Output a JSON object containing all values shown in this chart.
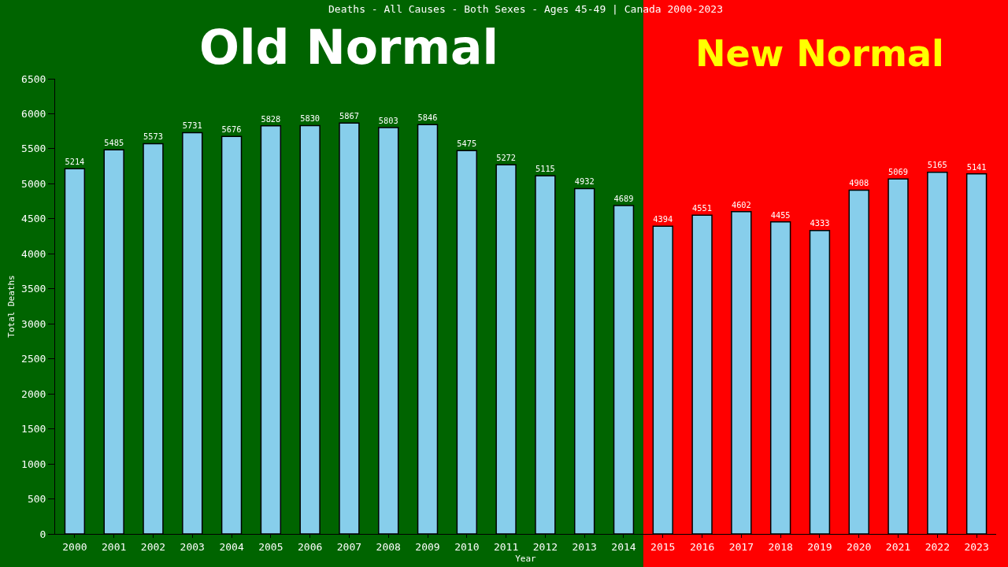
{
  "chart_data": {
    "type": "bar",
    "title": "Deaths - All Causes - Both Sexes - Ages 45-49 | Canada 2000-2023",
    "xlabel": "Year",
    "ylabel": "Total Deaths",
    "categories": [
      "2000",
      "2001",
      "2002",
      "2003",
      "2004",
      "2005",
      "2006",
      "2007",
      "2008",
      "2009",
      "2010",
      "2011",
      "2012",
      "2013",
      "2014",
      "2015",
      "2016",
      "2017",
      "2018",
      "2019",
      "2020",
      "2021",
      "2022",
      "2023"
    ],
    "values": [
      5214,
      5485,
      5573,
      5731,
      5676,
      5828,
      5830,
      5867,
      5803,
      5846,
      5475,
      5272,
      5115,
      4932,
      4689,
      4394,
      4551,
      4602,
      4455,
      4333,
      4908,
      5069,
      5165,
      5141
    ],
    "color": "#87ceeb",
    "ylim": [
      0,
      6500
    ],
    "yticks": [
      0,
      500,
      1000,
      1500,
      2000,
      2500,
      3000,
      3500,
      4000,
      4500,
      5000,
      5500,
      6000,
      6500
    ],
    "grid": false,
    "data_labels": true,
    "bands": [
      {
        "axis": "x",
        "from": "2000",
        "to": "2014",
        "label": "Old Normal",
        "color": "#006400"
      },
      {
        "axis": "x",
        "from": "2015",
        "to": "2023",
        "label": "New Normal",
        "color": "#ff0000"
      }
    ]
  }
}
